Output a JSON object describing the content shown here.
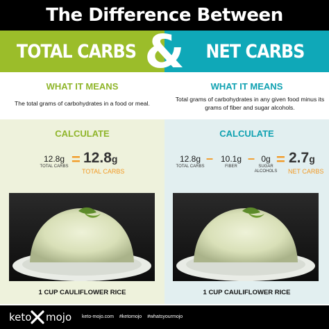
{
  "title": "The Difference Between",
  "left_band": "TOTAL CARBS",
  "ampersand": "&",
  "right_band": "NET CARBS",
  "left": {
    "what_heading": "WHAT IT MEANS",
    "description": "The total grams of carbohydrates in a food or meal.",
    "calc_heading": "CALCULATE",
    "eq": {
      "value": "12.8g",
      "value_label": "TOTAL CARBS",
      "equals": "=",
      "result_num": "12.8",
      "result_unit": "g",
      "result_label": "TOTAL CARBS"
    },
    "caption": "1 CUP CAULIFLOWER RICE"
  },
  "right": {
    "what_heading": "WHAT IT MEANS",
    "description": "Total grams of carbohydrates in any given food minus its grams of fiber and sugar alcohols.",
    "calc_heading": "CALCULATE",
    "eq": {
      "a": "12.8g",
      "a_label": "TOTAL CARBS",
      "minus1": "–",
      "b": "10.1g",
      "b_label": "FIBER",
      "minus2": "–",
      "c": "0g",
      "c_label": "SUGAR ALCOHOLS",
      "equals": "=",
      "result_num": "2.7",
      "result_unit": "g",
      "result_label": "NET CARBS"
    },
    "caption": "1 CUP CAULIFLOWER RICE"
  },
  "footer": {
    "brand_left": "keto",
    "brand_right": "mojo",
    "links": [
      "keto-mojo.com",
      "#ketomojo",
      "#whatsyourmojo"
    ]
  },
  "colors": {
    "green": "#9bbd2a",
    "teal": "#0fa8b8",
    "orange": "#f29a25",
    "black": "#000000"
  }
}
